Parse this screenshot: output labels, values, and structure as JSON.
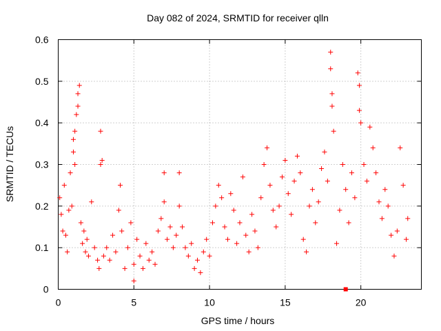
{
  "chart_data": {
    "type": "scatter",
    "title": "Day 082 of 2024, SRMTID for receiver qlln",
    "xlabel": "GPS time / hours",
    "ylabel": "SRMTID / TECUs",
    "xlim": [
      0,
      24
    ],
    "ylim": [
      0,
      0.6
    ],
    "x_ticks": [
      0,
      5,
      10,
      15,
      20
    ],
    "x_tick_labels": [
      "0",
      "5",
      "10",
      "15",
      "20"
    ],
    "y_ticks": [
      0,
      0.1,
      0.2,
      0.3,
      0.4,
      0.5,
      0.6
    ],
    "y_tick_labels": [
      "0",
      "0.1",
      "0.2",
      "0.3",
      "0.4",
      "0.5",
      "0.6"
    ],
    "grid": true,
    "marker": "plus",
    "series_color": "#ff0000",
    "special_point": {
      "x": 19.0,
      "y": 0.0,
      "marker": "square"
    },
    "series": [
      {
        "name": "SRMTID",
        "points": [
          [
            0.1,
            0.22
          ],
          [
            0.2,
            0.18
          ],
          [
            0.3,
            0.14
          ],
          [
            0.4,
            0.25
          ],
          [
            0.5,
            0.13
          ],
          [
            0.6,
            0.09
          ],
          [
            0.7,
            0.19
          ],
          [
            0.8,
            0.28
          ],
          [
            0.9,
            0.2
          ],
          [
            1.0,
            0.33
          ],
          [
            1.0,
            0.36
          ],
          [
            1.1,
            0.3
          ],
          [
            1.1,
            0.38
          ],
          [
            1.2,
            0.42
          ],
          [
            1.3,
            0.47
          ],
          [
            1.3,
            0.44
          ],
          [
            1.4,
            0.49
          ],
          [
            1.5,
            0.16
          ],
          [
            1.6,
            0.11
          ],
          [
            1.7,
            0.14
          ],
          [
            1.8,
            0.09
          ],
          [
            1.9,
            0.12
          ],
          [
            2.0,
            0.08
          ],
          [
            2.2,
            0.21
          ],
          [
            2.4,
            0.1
          ],
          [
            2.6,
            0.07
          ],
          [
            2.7,
            0.05
          ],
          [
            2.8,
            0.38
          ],
          [
            2.8,
            0.3
          ],
          [
            2.9,
            0.31
          ],
          [
            3.0,
            0.08
          ],
          [
            3.2,
            0.1
          ],
          [
            3.4,
            0.07
          ],
          [
            3.6,
            0.13
          ],
          [
            3.8,
            0.09
          ],
          [
            4.0,
            0.19
          ],
          [
            4.1,
            0.25
          ],
          [
            4.2,
            0.14
          ],
          [
            4.4,
            0.05
          ],
          [
            4.6,
            0.1
          ],
          [
            4.8,
            0.16
          ],
          [
            5.0,
            0.06
          ],
          [
            5.0,
            0.02
          ],
          [
            5.2,
            0.12
          ],
          [
            5.4,
            0.08
          ],
          [
            5.6,
            0.05
          ],
          [
            5.8,
            0.11
          ],
          [
            6.0,
            0.07
          ],
          [
            6.2,
            0.09
          ],
          [
            6.4,
            0.06
          ],
          [
            6.6,
            0.14
          ],
          [
            6.8,
            0.17
          ],
          [
            7.0,
            0.28
          ],
          [
            7.0,
            0.21
          ],
          [
            7.2,
            0.12
          ],
          [
            7.4,
            0.15
          ],
          [
            7.6,
            0.1
          ],
          [
            7.8,
            0.13
          ],
          [
            8.0,
            0.28
          ],
          [
            8.0,
            0.2
          ],
          [
            8.2,
            0.15
          ],
          [
            8.4,
            0.1
          ],
          [
            8.6,
            0.08
          ],
          [
            8.8,
            0.11
          ],
          [
            9.0,
            0.05
          ],
          [
            9.2,
            0.07
          ],
          [
            9.4,
            0.04
          ],
          [
            9.6,
            0.09
          ],
          [
            9.8,
            0.12
          ],
          [
            10.0,
            0.08
          ],
          [
            10.2,
            0.16
          ],
          [
            10.4,
            0.2
          ],
          [
            10.6,
            0.25
          ],
          [
            10.8,
            0.22
          ],
          [
            11.0,
            0.15
          ],
          [
            11.2,
            0.12
          ],
          [
            11.4,
            0.23
          ],
          [
            11.6,
            0.19
          ],
          [
            11.8,
            0.11
          ],
          [
            12.0,
            0.16
          ],
          [
            12.2,
            0.27
          ],
          [
            12.4,
            0.13
          ],
          [
            12.6,
            0.09
          ],
          [
            12.8,
            0.18
          ],
          [
            13.0,
            0.14
          ],
          [
            13.2,
            0.1
          ],
          [
            13.4,
            0.22
          ],
          [
            13.6,
            0.3
          ],
          [
            13.8,
            0.34
          ],
          [
            14.0,
            0.25
          ],
          [
            14.2,
            0.19
          ],
          [
            14.4,
            0.15
          ],
          [
            14.6,
            0.2
          ],
          [
            14.8,
            0.27
          ],
          [
            15.0,
            0.31
          ],
          [
            15.2,
            0.23
          ],
          [
            15.4,
            0.18
          ],
          [
            15.6,
            0.26
          ],
          [
            15.8,
            0.32
          ],
          [
            16.0,
            0.28
          ],
          [
            16.2,
            0.12
          ],
          [
            16.4,
            0.09
          ],
          [
            16.6,
            0.2
          ],
          [
            16.8,
            0.24
          ],
          [
            17.0,
            0.16
          ],
          [
            17.2,
            0.21
          ],
          [
            17.4,
            0.29
          ],
          [
            17.6,
            0.33
          ],
          [
            17.8,
            0.26
          ],
          [
            18.0,
            0.57
          ],
          [
            18.0,
            0.53
          ],
          [
            18.1,
            0.47
          ],
          [
            18.1,
            0.44
          ],
          [
            18.2,
            0.38
          ],
          [
            18.4,
            0.11
          ],
          [
            18.6,
            0.19
          ],
          [
            18.8,
            0.3
          ],
          [
            19.0,
            0.24
          ],
          [
            19.2,
            0.16
          ],
          [
            19.4,
            0.28
          ],
          [
            19.6,
            0.22
          ],
          [
            19.8,
            0.52
          ],
          [
            19.9,
            0.49
          ],
          [
            19.9,
            0.43
          ],
          [
            20.0,
            0.4
          ],
          [
            20.2,
            0.3
          ],
          [
            20.4,
            0.26
          ],
          [
            20.6,
            0.39
          ],
          [
            20.8,
            0.34
          ],
          [
            21.0,
            0.28
          ],
          [
            21.2,
            0.21
          ],
          [
            21.4,
            0.17
          ],
          [
            21.6,
            0.24
          ],
          [
            21.8,
            0.2
          ],
          [
            22.0,
            0.13
          ],
          [
            22.2,
            0.08
          ],
          [
            22.4,
            0.14
          ],
          [
            22.6,
            0.34
          ],
          [
            22.8,
            0.25
          ],
          [
            23.0,
            0.12
          ],
          [
            23.1,
            0.17
          ]
        ]
      }
    ]
  }
}
